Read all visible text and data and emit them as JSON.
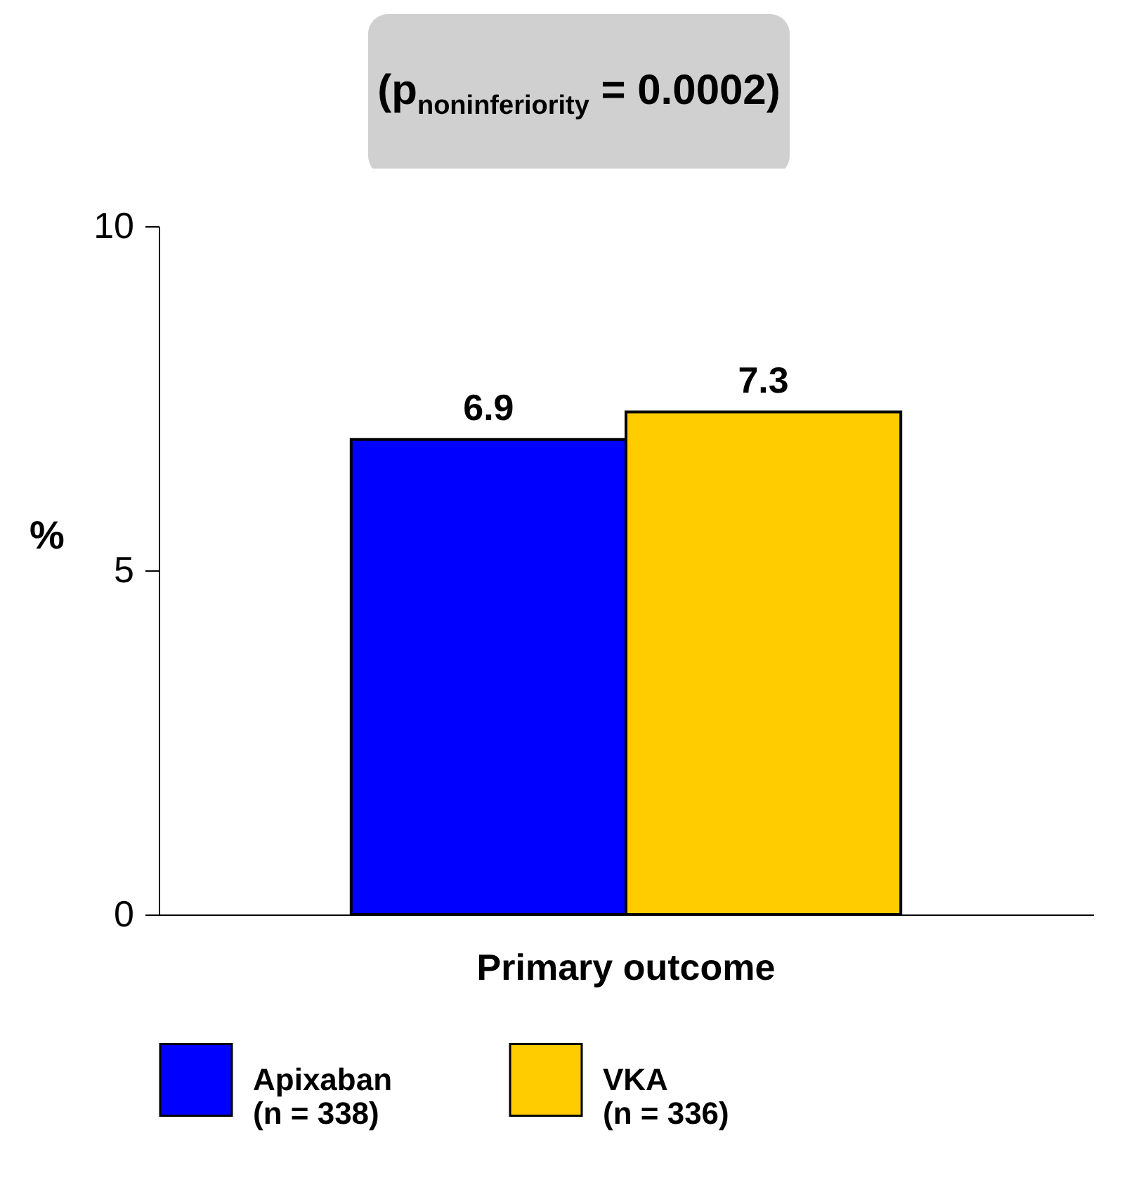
{
  "chart_data": {
    "type": "bar",
    "title": "(p$_{noninferiority}$ = 0.0002)",
    "ylabel": "%",
    "categories": [
      "Primary outcome"
    ],
    "series": [
      {
        "name": "Apixaban\n(n = 338)",
        "color": "#0000ff",
        "values": [
          6.9
        ]
      },
      {
        "name": "VKA\n(n = 336)",
        "color": "#ffcc00",
        "values": [
          7.3
        ]
      }
    ],
    "ylim": [
      0,
      10
    ],
    "yticks": [
      0,
      5,
      10
    ],
    "data_labels": true,
    "legend": "bottom",
    "grid": false
  }
}
